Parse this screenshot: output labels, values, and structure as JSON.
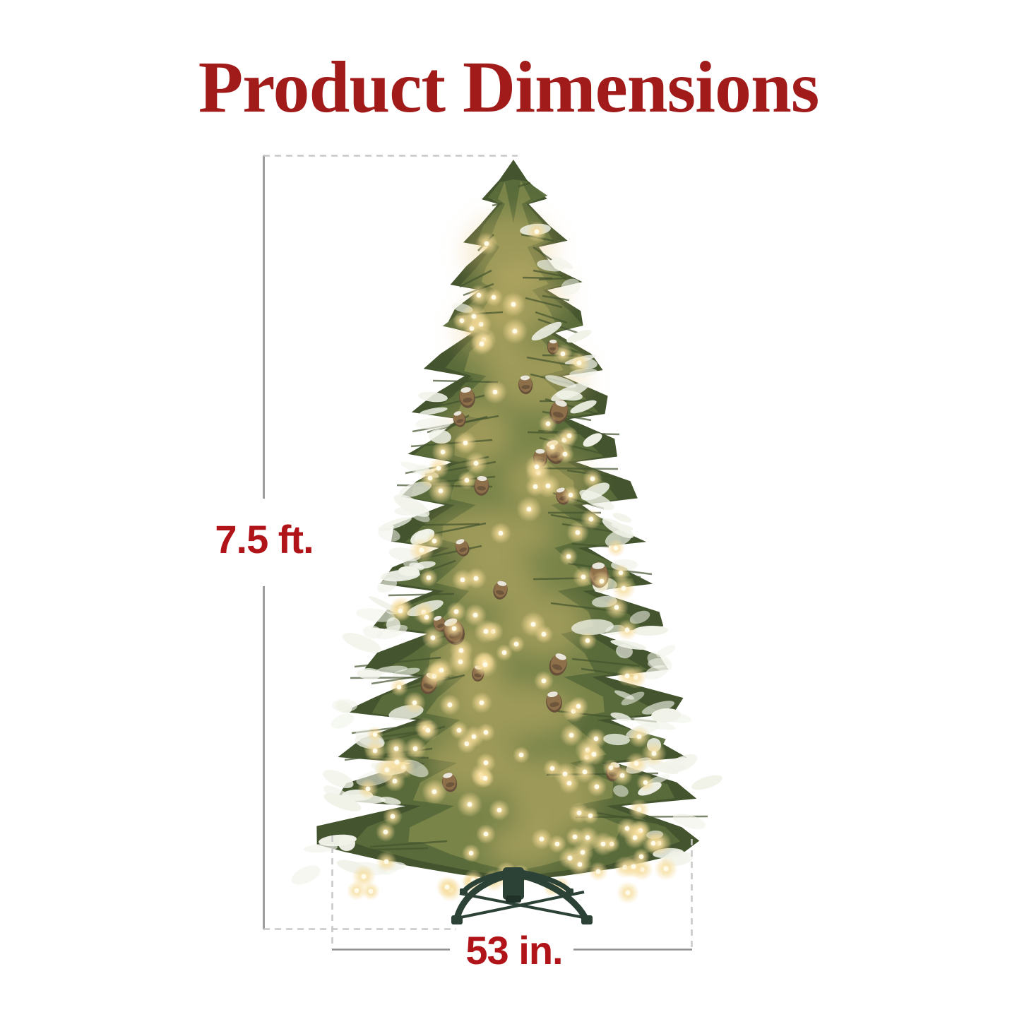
{
  "title": {
    "text": "Product Dimensions",
    "color": "#a21b1b"
  },
  "dimensions": {
    "label_color": "#b11418",
    "height": {
      "label": "7.5 ft."
    },
    "width": {
      "label": "53 in."
    }
  },
  "lines": {
    "solid": "#9c9c9c",
    "solid_width_line": "#8f8f8f",
    "dashed": "#c8c8c8"
  },
  "illustration": {
    "subject": "pre-lit flocked slim christmas tree with pinecones and folding metal stand",
    "colors": {
      "dark_green": "#44542e",
      "mid_green": "#5b6d3b",
      "light_green": "#7c874b",
      "gold_glow": "#e9c878",
      "warm_light_core": "#fffbe9",
      "warm_light_halo": "#f6dc99",
      "flock_white": "#f1f3e9",
      "pinecone_brown": "#8d6f49",
      "pinecone_dark": "#66503a",
      "frost_white": "#f3f4ec",
      "stand_green": "#2c4237",
      "stand_dark": "#1f3128"
    }
  }
}
